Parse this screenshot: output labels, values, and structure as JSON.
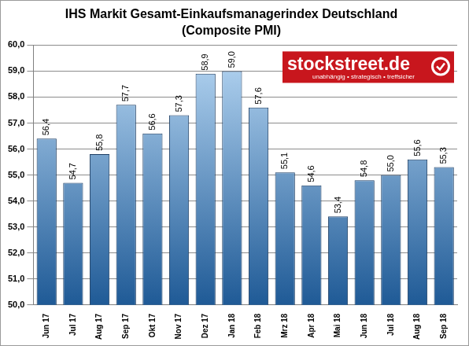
{
  "chart_data": {
    "type": "bar",
    "title": "IHS Markit Gesamt-Einkaufsmanagerindex Deutschland",
    "subtitle": "(Composite PMI)",
    "categories": [
      "Jun 17",
      "Jul 17",
      "Aug 17",
      "Sep 17",
      "Okt 17",
      "Nov 17",
      "Dez 17",
      "Jan 18",
      "Feb 18",
      "Mrz 18",
      "Apr 18",
      "Mai 18",
      "Jun 18",
      "Jul 18",
      "Aug 18",
      "Sep 18"
    ],
    "values": [
      56.4,
      54.7,
      55.8,
      57.7,
      56.6,
      57.3,
      58.9,
      59.0,
      57.6,
      55.1,
      54.6,
      53.4,
      54.8,
      55.0,
      55.6,
      55.3
    ],
    "value_labels": [
      "56,4",
      "54,7",
      "55,8",
      "57,7",
      "56,6",
      "57,3",
      "58,9",
      "59,0",
      "57,6",
      "55,1",
      "54,6",
      "53,4",
      "54,8",
      "55,0",
      "55,6",
      "55,3"
    ],
    "color": "#1f5a96",
    "ylim": [
      50,
      60
    ],
    "yticks": [
      {
        "value": 50,
        "label": "50,0"
      },
      {
        "value": 51,
        "label": "51,0"
      },
      {
        "value": 52,
        "label": "52,0"
      },
      {
        "value": 53,
        "label": "53,0"
      },
      {
        "value": 54,
        "label": "54,0"
      },
      {
        "value": 55,
        "label": "55,0"
      },
      {
        "value": 56,
        "label": "56,0"
      },
      {
        "value": 57,
        "label": "57,0"
      },
      {
        "value": 58,
        "label": "58,0"
      },
      {
        "value": 59,
        "label": "59,0"
      },
      {
        "value": 60,
        "label": "60,0"
      }
    ],
    "grid": true,
    "data_labels": true,
    "annotations": [
      "stockstreet.de",
      "unabhängig • strategisch • treffsicher"
    ]
  }
}
